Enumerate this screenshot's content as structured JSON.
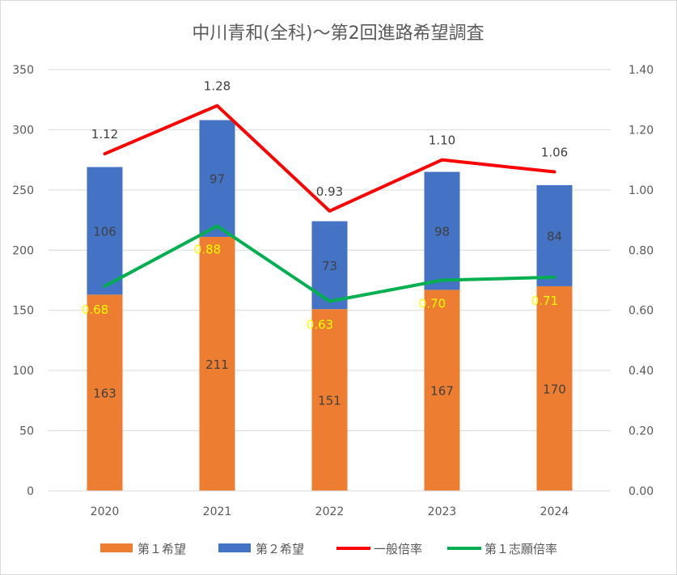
{
  "chart_data": {
    "type": "bar",
    "title": "中川青和(全科)～第2回進路希望調査",
    "categories": [
      "2020",
      "2021",
      "2022",
      "2023",
      "2024"
    ],
    "stacked": true,
    "ylim": [
      0,
      350
    ],
    "yticks": [
      "0",
      "50",
      "100",
      "150",
      "200",
      "250",
      "300",
      "350"
    ],
    "y2lim": [
      0,
      1.4
    ],
    "y2ticks": [
      "0.00",
      "0.20",
      "0.40",
      "0.60",
      "0.80",
      "1.00",
      "1.20",
      "1.40"
    ],
    "grid": true,
    "legend_position": "bottom",
    "series": [
      {
        "name": "第１希望",
        "kind": "bar",
        "axis": "left",
        "color": "#ed7d31",
        "values": [
          163,
          211,
          151,
          167,
          170
        ]
      },
      {
        "name": "第２希望",
        "kind": "bar",
        "axis": "left",
        "color": "#4472c4",
        "values": [
          106,
          97,
          73,
          98,
          84
        ]
      },
      {
        "name": "一般倍率",
        "kind": "line",
        "axis": "right",
        "color": "#ff0000",
        "values": [
          1.12,
          1.28,
          0.93,
          1.1,
          1.06
        ],
        "labels": [
          "1.12",
          "1.28",
          "0.93",
          "1.10",
          "1.06"
        ]
      },
      {
        "name": "第１志願倍率",
        "kind": "line",
        "axis": "right",
        "color": "#00b050",
        "values": [
          0.68,
          0.88,
          0.63,
          0.7,
          0.71
        ],
        "labels": [
          "0.68",
          "0.88",
          "0.63",
          "0.70",
          "0.71"
        ]
      }
    ]
  }
}
